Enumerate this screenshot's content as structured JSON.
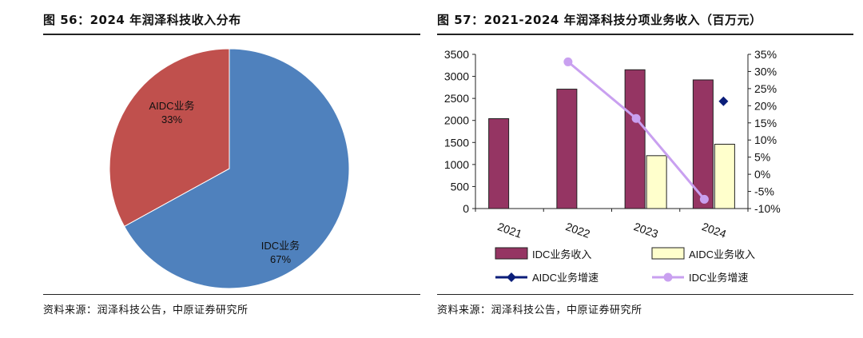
{
  "left": {
    "title": "图 56：2024 年润泽科技收入分布",
    "source": "资料来源：润泽科技公告，中原证券研究所"
  },
  "right": {
    "title": "图 57：2021-2024 年润泽科技分项业务收入（百万元）",
    "source": "资料来源：润泽科技公告，中原证券研究所"
  },
  "colors": {
    "idc_revenue": "#953563",
    "aidc_revenue": "#ffffcc",
    "aidc_growth": "#0b1e7a",
    "idc_growth": "#c9a0f0",
    "pie_idc": "#4f81bd",
    "pie_aidc": "#c0504d"
  },
  "chart_data": [
    {
      "type": "pie",
      "title": "2024 年润泽科技收入分布",
      "slices": [
        {
          "label": "IDC业务",
          "value": 67,
          "value_label": "67%"
        },
        {
          "label": "AIDC业务",
          "value": 33,
          "value_label": "33%"
        }
      ]
    },
    {
      "type": "bar+line",
      "title": "2021-2024 年润泽科技分项业务收入（百万元）",
      "categories": [
        "2021",
        "2022",
        "2023",
        "2024"
      ],
      "y_left": {
        "range": [
          0,
          3500
        ],
        "ticks": [
          0,
          500,
          1000,
          1500,
          2000,
          2500,
          3000,
          3500
        ],
        "tick_labels": [
          "0",
          "500",
          "1000",
          "1500",
          "2000",
          "2500",
          "3000",
          "3500"
        ]
      },
      "y_right": {
        "range": [
          -10,
          35
        ],
        "ticks": [
          -10,
          -5,
          0,
          5,
          10,
          15,
          20,
          25,
          30,
          35
        ],
        "tick_labels": [
          "-10%",
          "-5%",
          "0%",
          "5%",
          "10%",
          "15%",
          "20%",
          "25%",
          "30%",
          "35%"
        ]
      },
      "bar_series": [
        {
          "name": "IDC业务收入",
          "axis": "left",
          "values": [
            2040,
            2710,
            3150,
            2920
          ]
        },
        {
          "name": "AIDC业务收入",
          "axis": "left",
          "values": [
            null,
            null,
            1200,
            1460
          ]
        }
      ],
      "line_series": [
        {
          "name": "AIDC业务增速",
          "axis": "right",
          "marker": "diamond",
          "values": [
            null,
            null,
            null,
            21.3
          ]
        },
        {
          "name": "IDC业务增速",
          "axis": "right",
          "marker": "circle",
          "values": [
            null,
            32.8,
            16.3,
            -7.3
          ]
        }
      ],
      "legend": [
        "IDC业务收入",
        "AIDC业务收入",
        "AIDC业务增速",
        "IDC业务增速"
      ]
    }
  ]
}
